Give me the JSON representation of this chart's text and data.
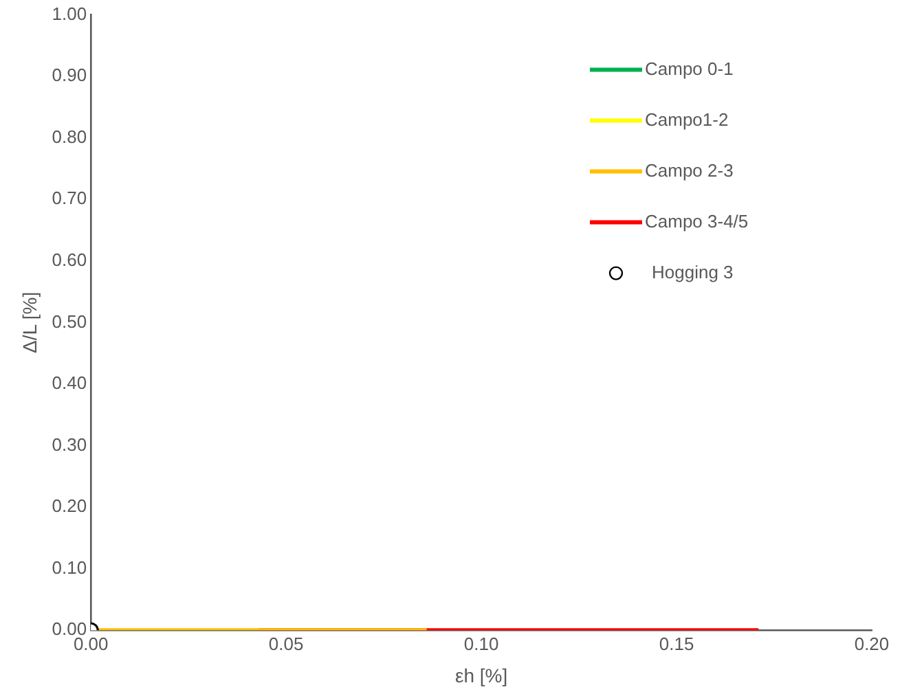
{
  "chart_data": {
    "type": "line",
    "xlabel": "εh [%]",
    "ylabel": "Δ/L [%]",
    "xlim": [
      0,
      0.2
    ],
    "xticks": [
      {
        "value": 0,
        "label": "0.00"
      },
      {
        "value": 0.05,
        "label": "0.05"
      },
      {
        "value": 0.1,
        "label": "0.10"
      },
      {
        "value": 0.15,
        "label": "0.15"
      },
      {
        "value": 0.2,
        "label": "0.20"
      }
    ],
    "ylim": [
      0,
      1
    ],
    "yticks": [
      {
        "value": 0,
        "label": "0.00"
      },
      {
        "value": 0.1,
        "label": "0.10"
      },
      {
        "value": 0.2,
        "label": "0.20"
      },
      {
        "value": 0.3,
        "label": "0.30"
      },
      {
        "value": 0.4,
        "label": "0.40"
      },
      {
        "value": 0.5,
        "label": "0.50"
      },
      {
        "value": 0.6,
        "label": "0.60"
      },
      {
        "value": 0.7,
        "label": "0.70"
      },
      {
        "value": 0.8,
        "label": "0.80"
      },
      {
        "value": 0.9,
        "label": "0.90"
      },
      {
        "value": 1,
        "label": "1.00"
      }
    ],
    "grid": false,
    "legend": "top right",
    "marker": "none",
    "series": [
      {
        "name": "Campo 0-1",
        "color": "#00b050"
      },
      {
        "name": "Campo1-2",
        "color": "#ffff00"
      },
      {
        "name": "Campo 2-3",
        "color": "#ffc000",
        "x": [
          0,
          0.086
        ],
        "values": [
          0,
          0
        ]
      },
      {
        "name": "Campo 3-4/5",
        "color": "#ff0000",
        "x": [
          0.043,
          0.171
        ],
        "values": [
          0,
          0
        ]
      },
      {
        "name": "Hogging 3",
        "type": "scatter",
        "marker": "circle",
        "color": "#000000",
        "x": [
          0
        ],
        "values": [
          0
        ]
      }
    ]
  }
}
